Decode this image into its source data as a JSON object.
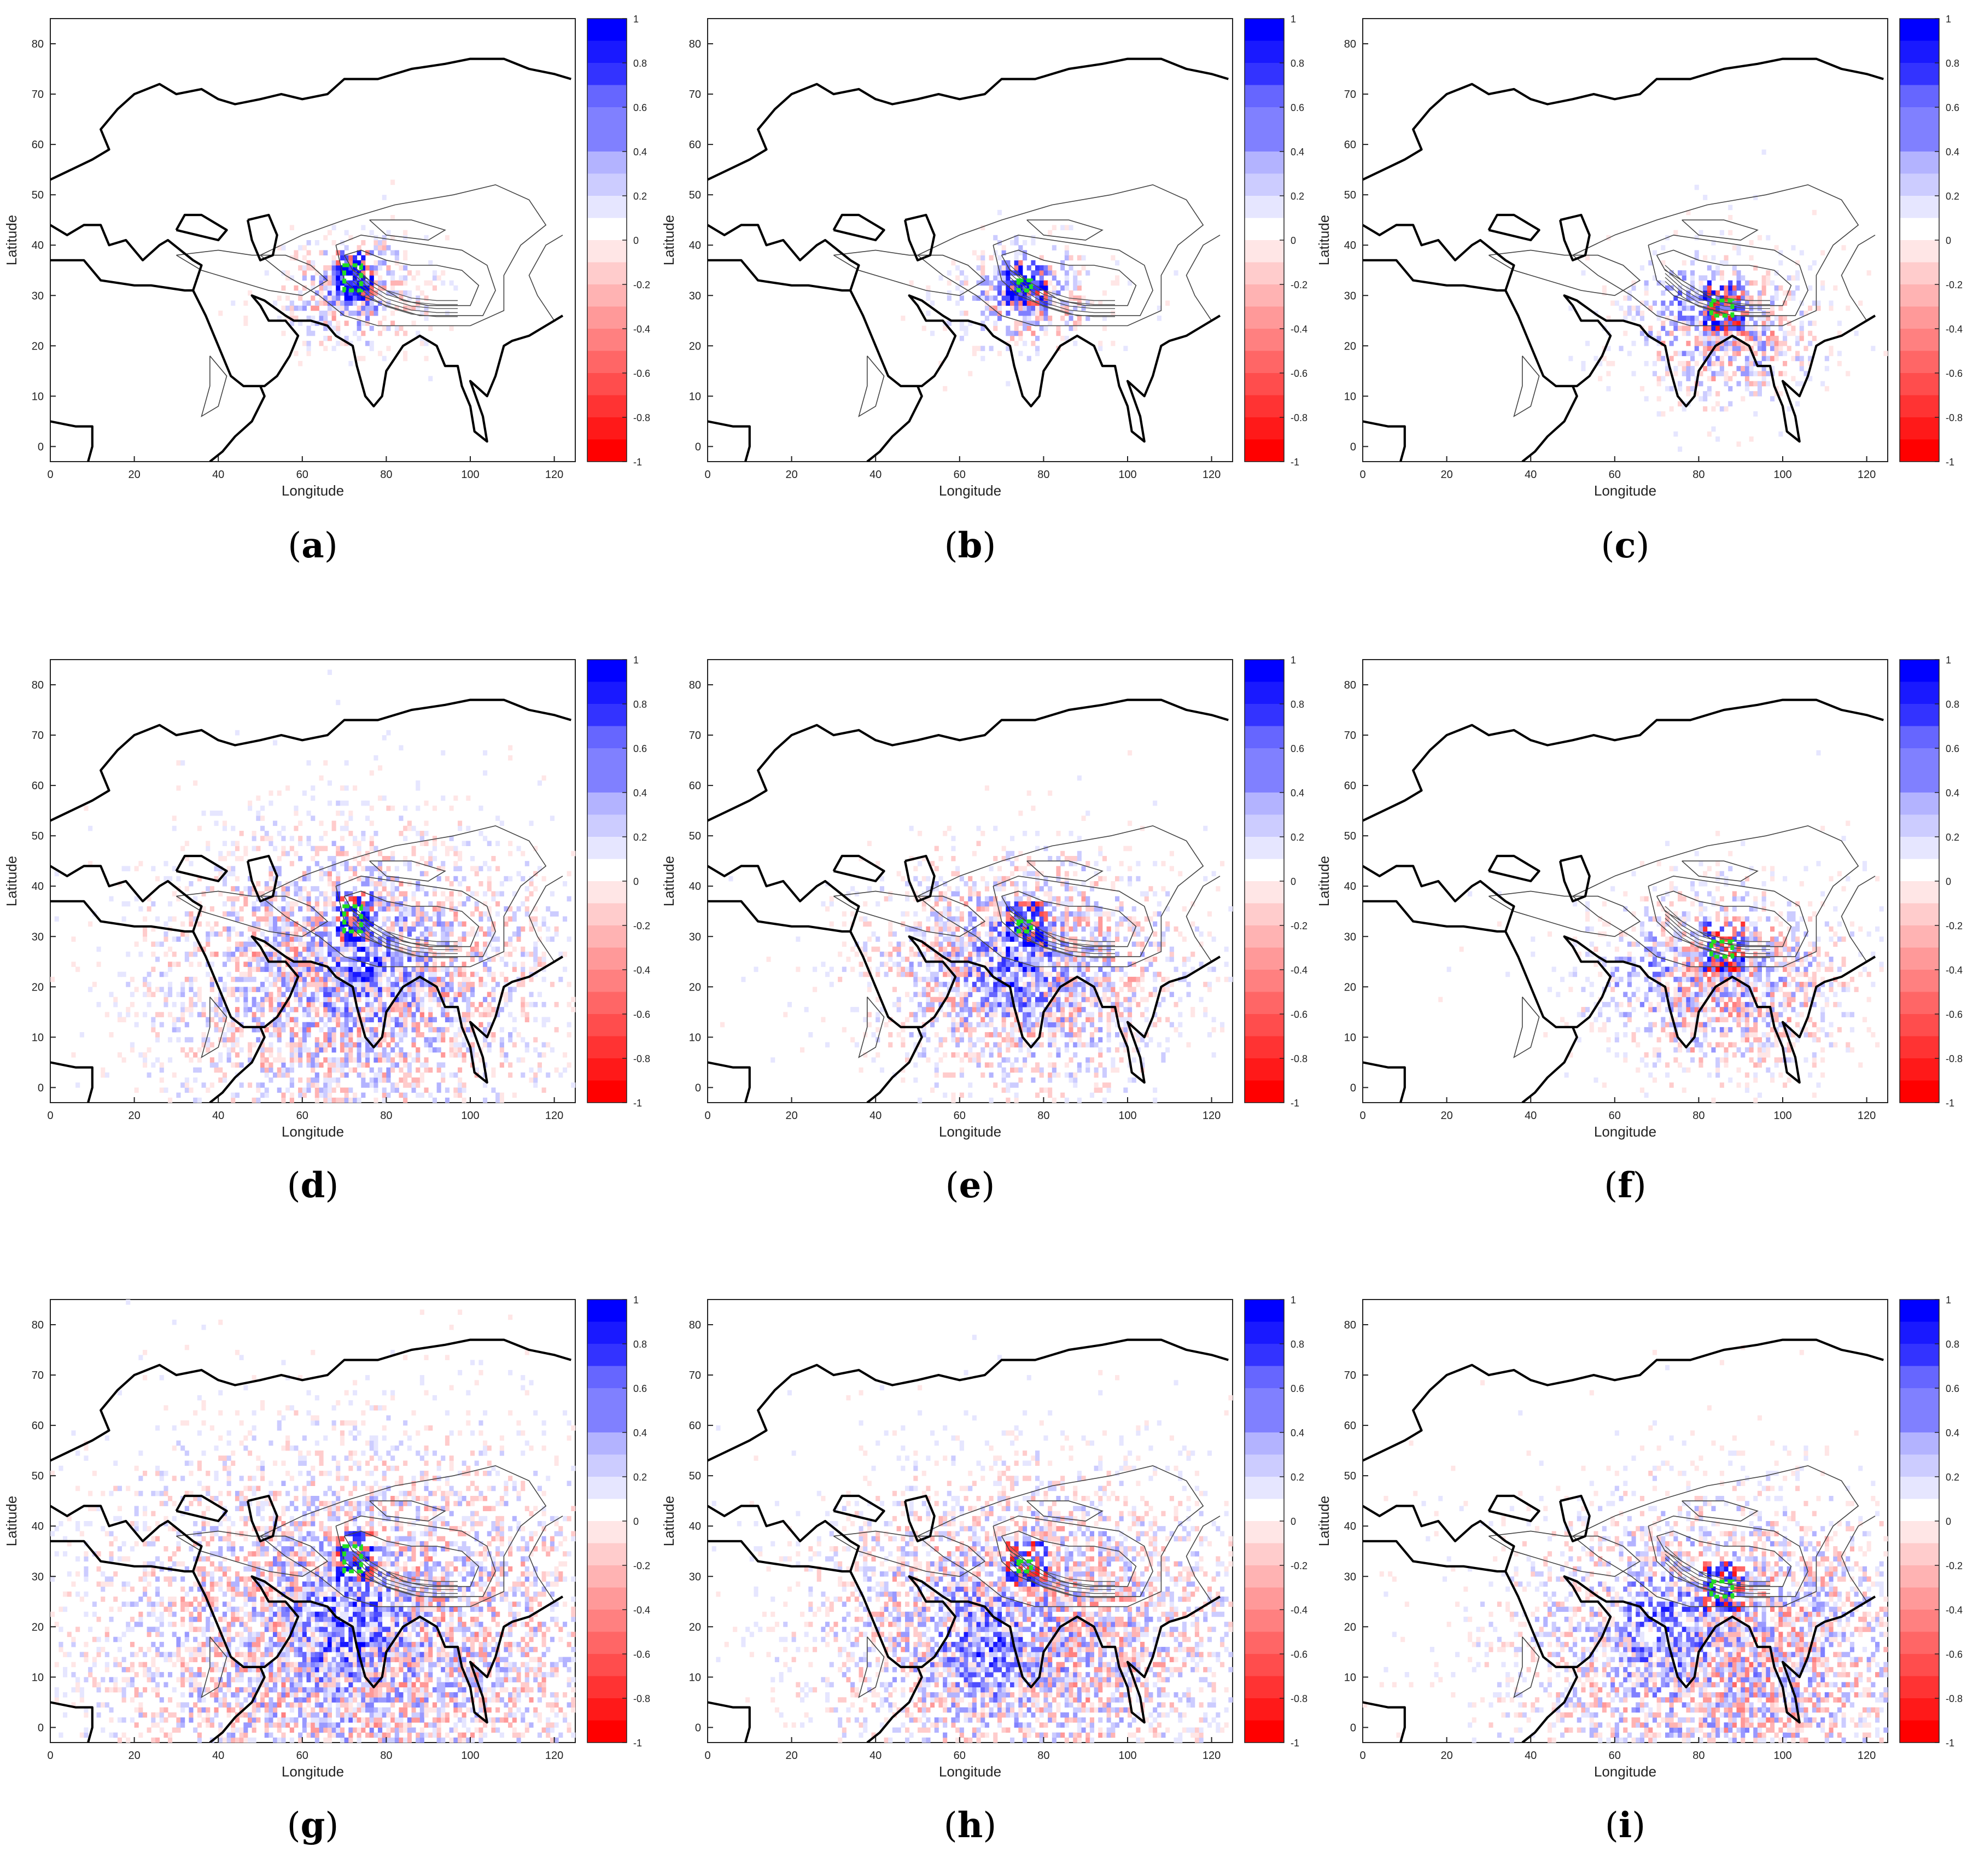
{
  "figure": {
    "axis": {
      "xlabel": "Longitude",
      "ylabel": "Latitude",
      "xticks": [
        0,
        20,
        40,
        60,
        80,
        100,
        120
      ],
      "yticks": [
        0,
        10,
        20,
        30,
        40,
        50,
        60,
        70,
        80
      ]
    },
    "colorbar": {
      "ticks": [
        "1",
        "0.8",
        "0.6",
        "0.4",
        "0.2",
        "0",
        "-0.2",
        "-0.4",
        "-0.6",
        "-0.8",
        "-1"
      ]
    },
    "colors": {
      "positive": "#0000ff",
      "negative": "#ff0000",
      "neutral": "#ffffff",
      "target": "#22dd22"
    }
  },
  "chart_data": [
    {
      "type": "heatmap",
      "label": "(a)",
      "letter": "a",
      "xlabel": "Longitude",
      "ylabel": "Latitude",
      "xlim": [
        0,
        125
      ],
      "ylim": [
        -3,
        85
      ],
      "clim": [
        -1,
        1
      ],
      "target_box": {
        "lon": [
          70,
          74
        ],
        "lat": [
          31,
          36
        ]
      },
      "spread": 0.4,
      "positive_center": [
        71,
        33
      ]
    },
    {
      "type": "heatmap",
      "label": "(b)",
      "letter": "b",
      "xlabel": "Longitude",
      "ylabel": "Latitude",
      "xlim": [
        0,
        125
      ],
      "ylim": [
        -3,
        85
      ],
      "clim": [
        -1,
        1
      ],
      "target_box": {
        "lon": [
          74,
          77
        ],
        "lat": [
          31,
          33
        ]
      },
      "spread": 0.4,
      "positive_center": [
        72,
        34
      ]
    },
    {
      "type": "heatmap",
      "label": "(c)",
      "letter": "c",
      "xlabel": "Longitude",
      "ylabel": "Latitude",
      "xlim": [
        0,
        125
      ],
      "ylim": [
        -3,
        85
      ],
      "clim": [
        -1,
        1
      ],
      "target_box": {
        "lon": [
          83,
          88
        ],
        "lat": [
          26,
          29
        ]
      },
      "spread": 0.6,
      "positive_center": [
        73,
        31
      ]
    },
    {
      "type": "heatmap",
      "label": "(d)",
      "letter": "d",
      "xlabel": "Longitude",
      "ylabel": "Latitude",
      "xlim": [
        0,
        125
      ],
      "ylim": [
        -3,
        85
      ],
      "clim": [
        -1,
        1
      ],
      "target_box": {
        "lon": [
          70,
          74
        ],
        "lat": [
          31,
          36
        ]
      },
      "spread": 1.6,
      "positive_center": [
        75,
        25
      ]
    },
    {
      "type": "heatmap",
      "label": "(e)",
      "letter": "e",
      "xlabel": "Longitude",
      "ylabel": "Latitude",
      "xlim": [
        0,
        125
      ],
      "ylim": [
        -3,
        85
      ],
      "clim": [
        -1,
        1
      ],
      "target_box": {
        "lon": [
          74,
          77
        ],
        "lat": [
          31,
          33
        ]
      },
      "spread": 1.2,
      "positive_center": [
        72,
        24
      ]
    },
    {
      "type": "heatmap",
      "label": "(f)",
      "letter": "f",
      "xlabel": "Longitude",
      "ylabel": "Latitude",
      "xlim": [
        0,
        125
      ],
      "ylim": [
        -3,
        85
      ],
      "clim": [
        -1,
        1
      ],
      "target_box": {
        "lon": [
          83,
          88
        ],
        "lat": [
          26,
          29
        ]
      },
      "spread": 0.9,
      "positive_center": [
        65,
        22
      ]
    },
    {
      "type": "heatmap",
      "label": "(g)",
      "letter": "g",
      "xlabel": "Longitude",
      "ylabel": "Latitude",
      "xlim": [
        0,
        125
      ],
      "ylim": [
        -3,
        85
      ],
      "clim": [
        -1,
        1
      ],
      "target_box": {
        "lon": [
          70,
          74
        ],
        "lat": [
          31,
          36
        ]
      },
      "spread": 2.2,
      "positive_center": [
        70,
        20
      ]
    },
    {
      "type": "heatmap",
      "label": "(h)",
      "letter": "h",
      "xlabel": "Longitude",
      "ylabel": "Latitude",
      "xlim": [
        0,
        125
      ],
      "ylim": [
        -3,
        85
      ],
      "clim": [
        -1,
        1
      ],
      "target_box": {
        "lon": [
          74,
          77
        ],
        "lat": [
          31,
          33
        ]
      },
      "spread": 1.7,
      "positive_center": [
        65,
        15
      ]
    },
    {
      "type": "heatmap",
      "label": "(i)",
      "letter": "i",
      "xlabel": "Longitude",
      "ylabel": "Latitude",
      "xlim": [
        0,
        125
      ],
      "ylim": [
        -3,
        85
      ],
      "clim": [
        -1,
        1
      ],
      "target_box": {
        "lon": [
          83,
          88
        ],
        "lat": [
          26,
          29
        ]
      },
      "spread": 1.7,
      "positive_center": [
        70,
        20
      ]
    }
  ]
}
